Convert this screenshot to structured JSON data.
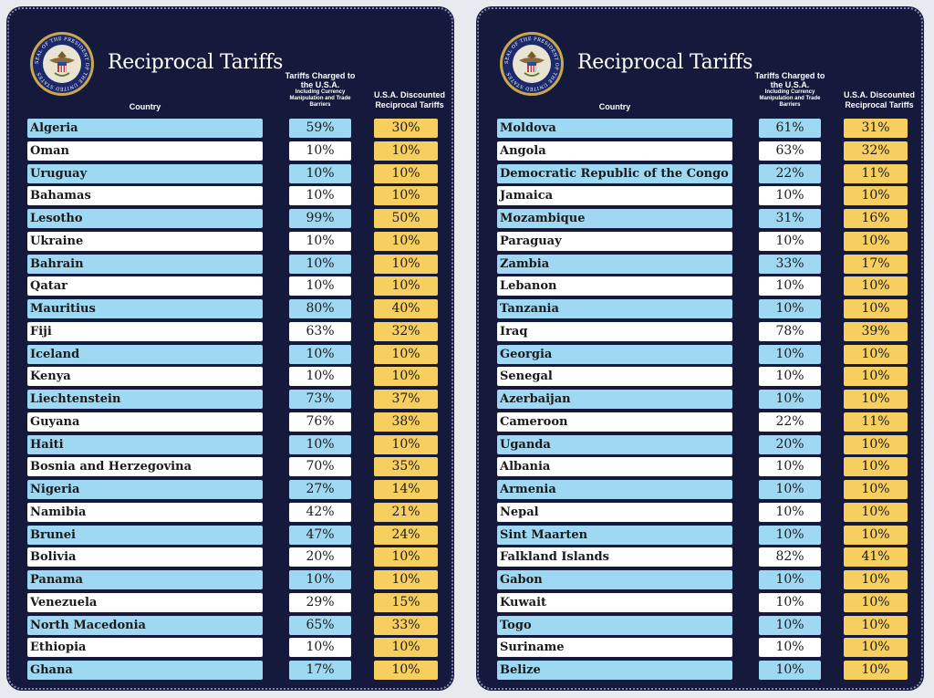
{
  "colors": {
    "panel_bg": "#15193b",
    "blue_row": "#9fd8f2",
    "white_row": "#ffffff",
    "discount": "#f7cf5e"
  },
  "seal": {
    "text": "SEAL OF THE PRESIDENT OF THE UNITED STATES"
  },
  "panels": [
    {
      "title": "Reciprocal Tariffs",
      "headers": {
        "country": "Country",
        "charged": "Tariffs Charged to the U.S.A.",
        "charged_sub": "Including Currency Manipulation and Trade Barriers",
        "discounted": "U.S.A. Discounted Reciprocal Tariffs"
      },
      "rows": [
        {
          "country": "Algeria",
          "charged": "59%",
          "discounted": "30%"
        },
        {
          "country": "Oman",
          "charged": "10%",
          "discounted": "10%"
        },
        {
          "country": "Uruguay",
          "charged": "10%",
          "discounted": "10%"
        },
        {
          "country": "Bahamas",
          "charged": "10%",
          "discounted": "10%"
        },
        {
          "country": "Lesotho",
          "charged": "99%",
          "discounted": "50%"
        },
        {
          "country": "Ukraine",
          "charged": "10%",
          "discounted": "10%"
        },
        {
          "country": "Bahrain",
          "charged": "10%",
          "discounted": "10%"
        },
        {
          "country": "Qatar",
          "charged": "10%",
          "discounted": "10%"
        },
        {
          "country": "Mauritius",
          "charged": "80%",
          "discounted": "40%"
        },
        {
          "country": "Fiji",
          "charged": "63%",
          "discounted": "32%"
        },
        {
          "country": "Iceland",
          "charged": "10%",
          "discounted": "10%"
        },
        {
          "country": "Kenya",
          "charged": "10%",
          "discounted": "10%"
        },
        {
          "country": "Liechtenstein",
          "charged": "73%",
          "discounted": "37%"
        },
        {
          "country": "Guyana",
          "charged": "76%",
          "discounted": "38%"
        },
        {
          "country": "Haiti",
          "charged": "10%",
          "discounted": "10%"
        },
        {
          "country": "Bosnia and Herzegovina",
          "charged": "70%",
          "discounted": "35%"
        },
        {
          "country": "Nigeria",
          "charged": "27%",
          "discounted": "14%"
        },
        {
          "country": "Namibia",
          "charged": "42%",
          "discounted": "21%"
        },
        {
          "country": "Brunei",
          "charged": "47%",
          "discounted": "24%"
        },
        {
          "country": "Bolivia",
          "charged": "20%",
          "discounted": "10%"
        },
        {
          "country": "Panama",
          "charged": "10%",
          "discounted": "10%"
        },
        {
          "country": "Venezuela",
          "charged": "29%",
          "discounted": "15%"
        },
        {
          "country": "North Macedonia",
          "charged": "65%",
          "discounted": "33%"
        },
        {
          "country": "Ethiopia",
          "charged": "10%",
          "discounted": "10%"
        },
        {
          "country": "Ghana",
          "charged": "17%",
          "discounted": "10%"
        }
      ]
    },
    {
      "title": "Reciprocal Tariffs",
      "headers": {
        "country": "Country",
        "charged": "Tariffs Charged to the U.S.A.",
        "charged_sub": "Including Currency Manipulation and Trade Barriers",
        "discounted": "U.S.A. Discounted Reciprocal Tariffs"
      },
      "rows": [
        {
          "country": "Moldova",
          "charged": "61%",
          "discounted": "31%"
        },
        {
          "country": "Angola",
          "charged": "63%",
          "discounted": "32%"
        },
        {
          "country": "Democratic Republic of the Congo",
          "charged": "22%",
          "discounted": "11%"
        },
        {
          "country": "Jamaica",
          "charged": "10%",
          "discounted": "10%"
        },
        {
          "country": "Mozambique",
          "charged": "31%",
          "discounted": "16%"
        },
        {
          "country": "Paraguay",
          "charged": "10%",
          "discounted": "10%"
        },
        {
          "country": "Zambia",
          "charged": "33%",
          "discounted": "17%"
        },
        {
          "country": "Lebanon",
          "charged": "10%",
          "discounted": "10%"
        },
        {
          "country": "Tanzania",
          "charged": "10%",
          "discounted": "10%"
        },
        {
          "country": "Iraq",
          "charged": "78%",
          "discounted": "39%"
        },
        {
          "country": "Georgia",
          "charged": "10%",
          "discounted": "10%"
        },
        {
          "country": "Senegal",
          "charged": "10%",
          "discounted": "10%"
        },
        {
          "country": "Azerbaijan",
          "charged": "10%",
          "discounted": "10%"
        },
        {
          "country": "Cameroon",
          "charged": "22%",
          "discounted": "11%"
        },
        {
          "country": "Uganda",
          "charged": "20%",
          "discounted": "10%"
        },
        {
          "country": "Albania",
          "charged": "10%",
          "discounted": "10%"
        },
        {
          "country": "Armenia",
          "charged": "10%",
          "discounted": "10%"
        },
        {
          "country": "Nepal",
          "charged": "10%",
          "discounted": "10%"
        },
        {
          "country": "Sint Maarten",
          "charged": "10%",
          "discounted": "10%"
        },
        {
          "country": "Falkland Islands",
          "charged": "82%",
          "discounted": "41%"
        },
        {
          "country": "Gabon",
          "charged": "10%",
          "discounted": "10%"
        },
        {
          "country": "Kuwait",
          "charged": "10%",
          "discounted": "10%"
        },
        {
          "country": "Togo",
          "charged": "10%",
          "discounted": "10%"
        },
        {
          "country": "Suriname",
          "charged": "10%",
          "discounted": "10%"
        },
        {
          "country": "Belize",
          "charged": "10%",
          "discounted": "10%"
        }
      ]
    }
  ]
}
